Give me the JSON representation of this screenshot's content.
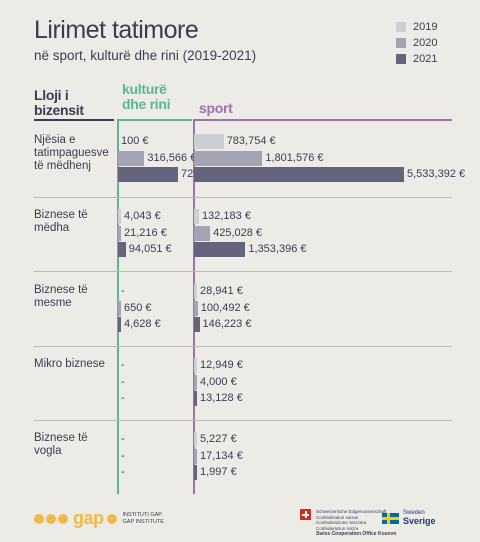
{
  "title": "Lirimet tatimore",
  "subtitle": "në sport, kulturë dhe rini (2019-2021)",
  "legend": [
    {
      "label": "2019",
      "color": "#cdcdd4"
    },
    {
      "label": "2020",
      "color": "#a4a3b3"
    },
    {
      "label": "2021",
      "color": "#66637f"
    }
  ],
  "headers": {
    "type": "Lloji i bizensit",
    "culture": "kulturë dhe rini",
    "sport": "sport"
  },
  "colors": {
    "culture_line": "#5cb597",
    "sport_line": "#a170b2"
  },
  "chart_data": {
    "type": "bar",
    "title": "Lirimet tatimore",
    "subtitle": "në sport, kulturë dhe rini (2019-2021)",
    "series_years": [
      "2019",
      "2020",
      "2021"
    ],
    "categories": [
      "Njësia e tatimpaguesve të mëdhenj",
      "Biznese të mëdha",
      "Biznese të mesme",
      "Mikro biznese",
      "Biznese të vogla"
    ],
    "groups": [
      {
        "name": "Njësia e tatimpaguesve të mëdhenj",
        "culture": [
          {
            "label": "100 €",
            "value": 100
          },
          {
            "label": "316,566 €",
            "value": 316566
          },
          {
            "label": "720,453 €",
            "value": 720453
          }
        ],
        "sport": [
          {
            "label": "783,754 €",
            "value": 783754
          },
          {
            "label": "1,801,576 €",
            "value": 1801576
          },
          {
            "label": "5,533,392 €",
            "value": 5533392
          }
        ]
      },
      {
        "name": "Biznese të mëdha",
        "culture": [
          {
            "label": "4,043 €",
            "value": 4043
          },
          {
            "label": "21,216 €",
            "value": 21216
          },
          {
            "label": "94,051 €",
            "value": 94051
          }
        ],
        "sport": [
          {
            "label": "132,183 €",
            "value": 132183
          },
          {
            "label": "425,028 €",
            "value": 425028
          },
          {
            "label": "1,353,396 €",
            "value": 1353396
          }
        ]
      },
      {
        "name": "Biznese të mesme",
        "culture": [
          {
            "label": "-",
            "value": 0
          },
          {
            "label": "650 €",
            "value": 650
          },
          {
            "label": "4,628 €",
            "value": 4628
          }
        ],
        "sport": [
          {
            "label": "28,941 €",
            "value": 28941
          },
          {
            "label": "100,492 €",
            "value": 100492
          },
          {
            "label": "146,223 €",
            "value": 146223
          }
        ]
      },
      {
        "name": "Mikro biznese",
        "culture": [
          {
            "label": "-",
            "value": 0
          },
          {
            "label": "-",
            "value": 0
          },
          {
            "label": "-",
            "value": 0
          }
        ],
        "sport": [
          {
            "label": "12,949 €",
            "value": 12949
          },
          {
            "label": "4,000 €",
            "value": 4000
          },
          {
            "label": "13,128 €",
            "value": 13128
          }
        ]
      },
      {
        "name": "Biznese të vogla",
        "culture": [
          {
            "label": "-",
            "value": 0
          },
          {
            "label": "-",
            "value": 0
          },
          {
            "label": "-",
            "value": 0
          }
        ],
        "sport": [
          {
            "label": "5,227 €",
            "value": 5227
          },
          {
            "label": "17,134 €",
            "value": 17134
          },
          {
            "label": "1,997 €",
            "value": 1997
          }
        ]
      }
    ]
  },
  "footer": {
    "org_word": "gap",
    "org_line1": "INSTITUTI GAP",
    "org_line2": "GAP INSTITUTE",
    "swiss_lines": [
      "Schweizerische Eidgenossenschaft",
      "Confédération suisse",
      "Confederazione Svizzera",
      "Confederaziun svizra"
    ],
    "swiss_office": "Swiss Cooperation Office Kosovo",
    "sweden_line1": "Sweden",
    "sweden_line2": "Sverige"
  }
}
